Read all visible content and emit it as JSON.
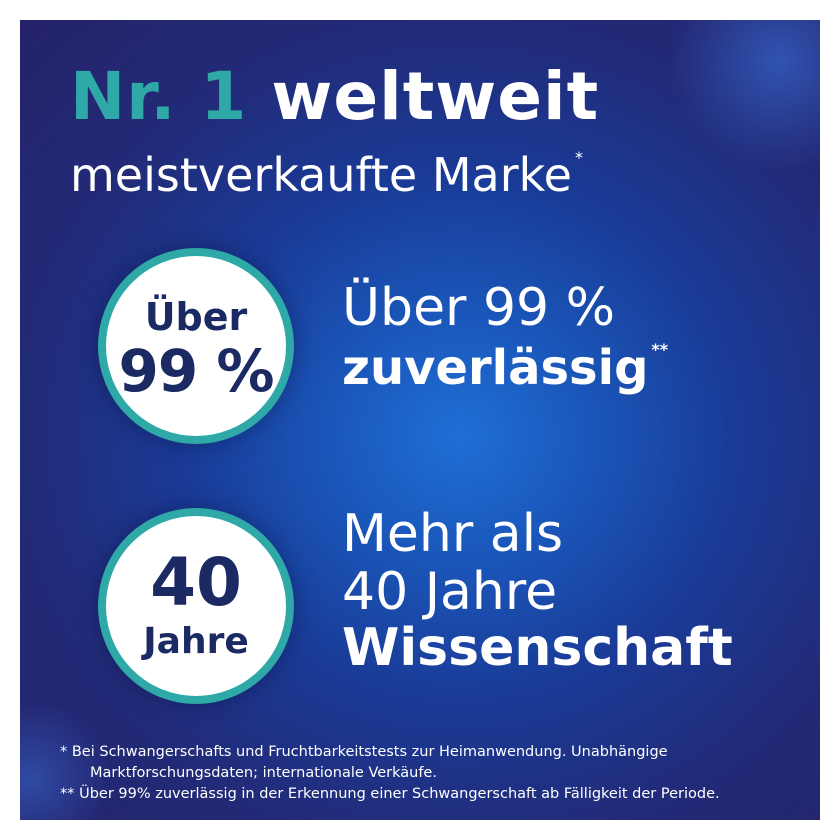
{
  "headline": {
    "accent": "Nr. 1",
    "rest": "weltweit",
    "subline": "meistverkaufte Marke",
    "subline_mark": "*"
  },
  "badges": [
    {
      "top": "Über",
      "bottom": "99 %"
    },
    {
      "top": "40",
      "bottom": "Jahre"
    }
  ],
  "stats": [
    {
      "line1": "Über 99 %",
      "line2": "zuverlässig",
      "mark": "**"
    },
    {
      "line1": "Mehr als",
      "line2": "40 Jahre",
      "line3": "Wissenschaft"
    }
  ],
  "footnotes": {
    "note1_line1": "* Bei Schwangerschafts und Fruchtbarkeitstests zur Heimanwendung. Unabhängige",
    "note1_line2": "Marktforschungsdaten; internationale Verkäufe.",
    "note2": "** Über 99% zuverlässig in der Erkennung einer Schwangerschaft ab Fälligkeit der Periode."
  },
  "colors": {
    "accent": "#2fa9a8",
    "badge_text": "#1c2a63",
    "background": "#1a3a96"
  }
}
